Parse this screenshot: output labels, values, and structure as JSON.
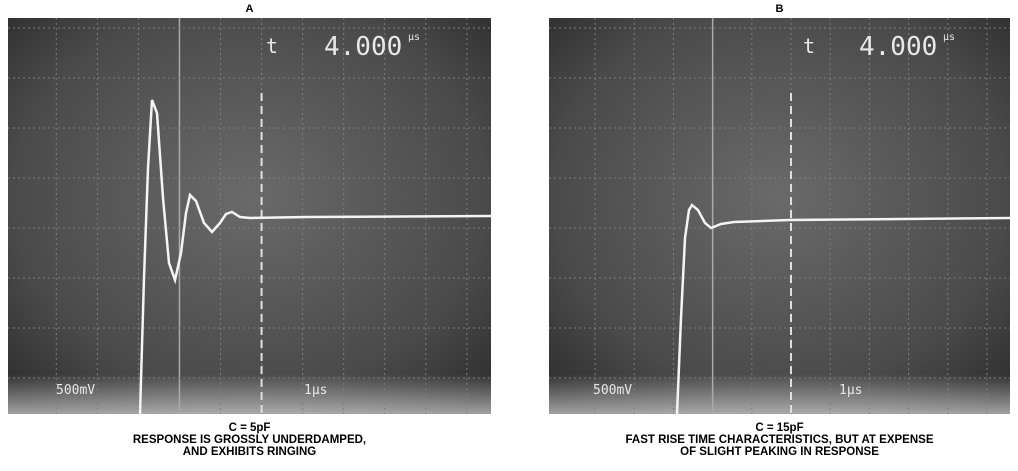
{
  "panels": [
    {
      "label": "A",
      "readout": "4.000",
      "readout_unit": "µs",
      "volts": "500mV",
      "time": "1µs",
      "caption": [
        "C = 5pF",
        "RESPONSE IS GROSSLY UNDERDAMPED,",
        "AND EXHIBITS RINGING"
      ]
    },
    {
      "label": "B",
      "readout": "4.000",
      "readout_unit": "µs",
      "volts": "500mV",
      "time": "1µs",
      "caption": [
        "C = 15pF",
        "FAST RISE TIME CHARACTERISTICS, BUT AT EXPENSE",
        "OF SLIGHT PEAKING IN RESPONSE"
      ]
    }
  ]
}
